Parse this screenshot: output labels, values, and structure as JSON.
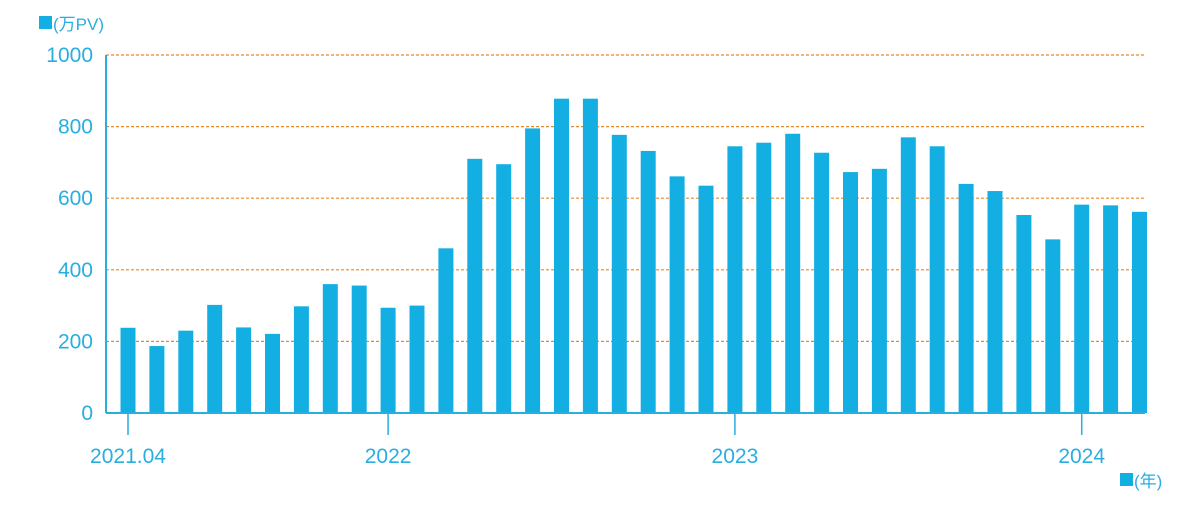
{
  "chart_data": {
    "type": "bar",
    "ylabel": "(万PV)",
    "xlabel": "(年)",
    "ylim": [
      0,
      1000
    ],
    "yticks": [
      0,
      200,
      400,
      600,
      800,
      1000
    ],
    "grid": true,
    "colors": {
      "bar": "#13afe3",
      "axis": "#29aee0",
      "grid": "#e8892b"
    },
    "x_tick_labels": [
      {
        "label": "2021.04",
        "index": 0
      },
      {
        "label": "2022",
        "index": 9
      },
      {
        "label": "2023",
        "index": 21
      },
      {
        "label": "2024",
        "index": 33
      }
    ],
    "values": [
      238,
      187,
      230,
      302,
      239,
      221,
      298,
      360,
      356,
      294,
      300,
      460,
      710,
      695,
      795,
      878,
      878,
      777,
      732,
      661,
      635,
      745,
      755,
      780,
      727,
      673,
      682,
      770,
      745,
      640,
      620,
      553,
      485,
      582,
      580,
      562
    ]
  }
}
